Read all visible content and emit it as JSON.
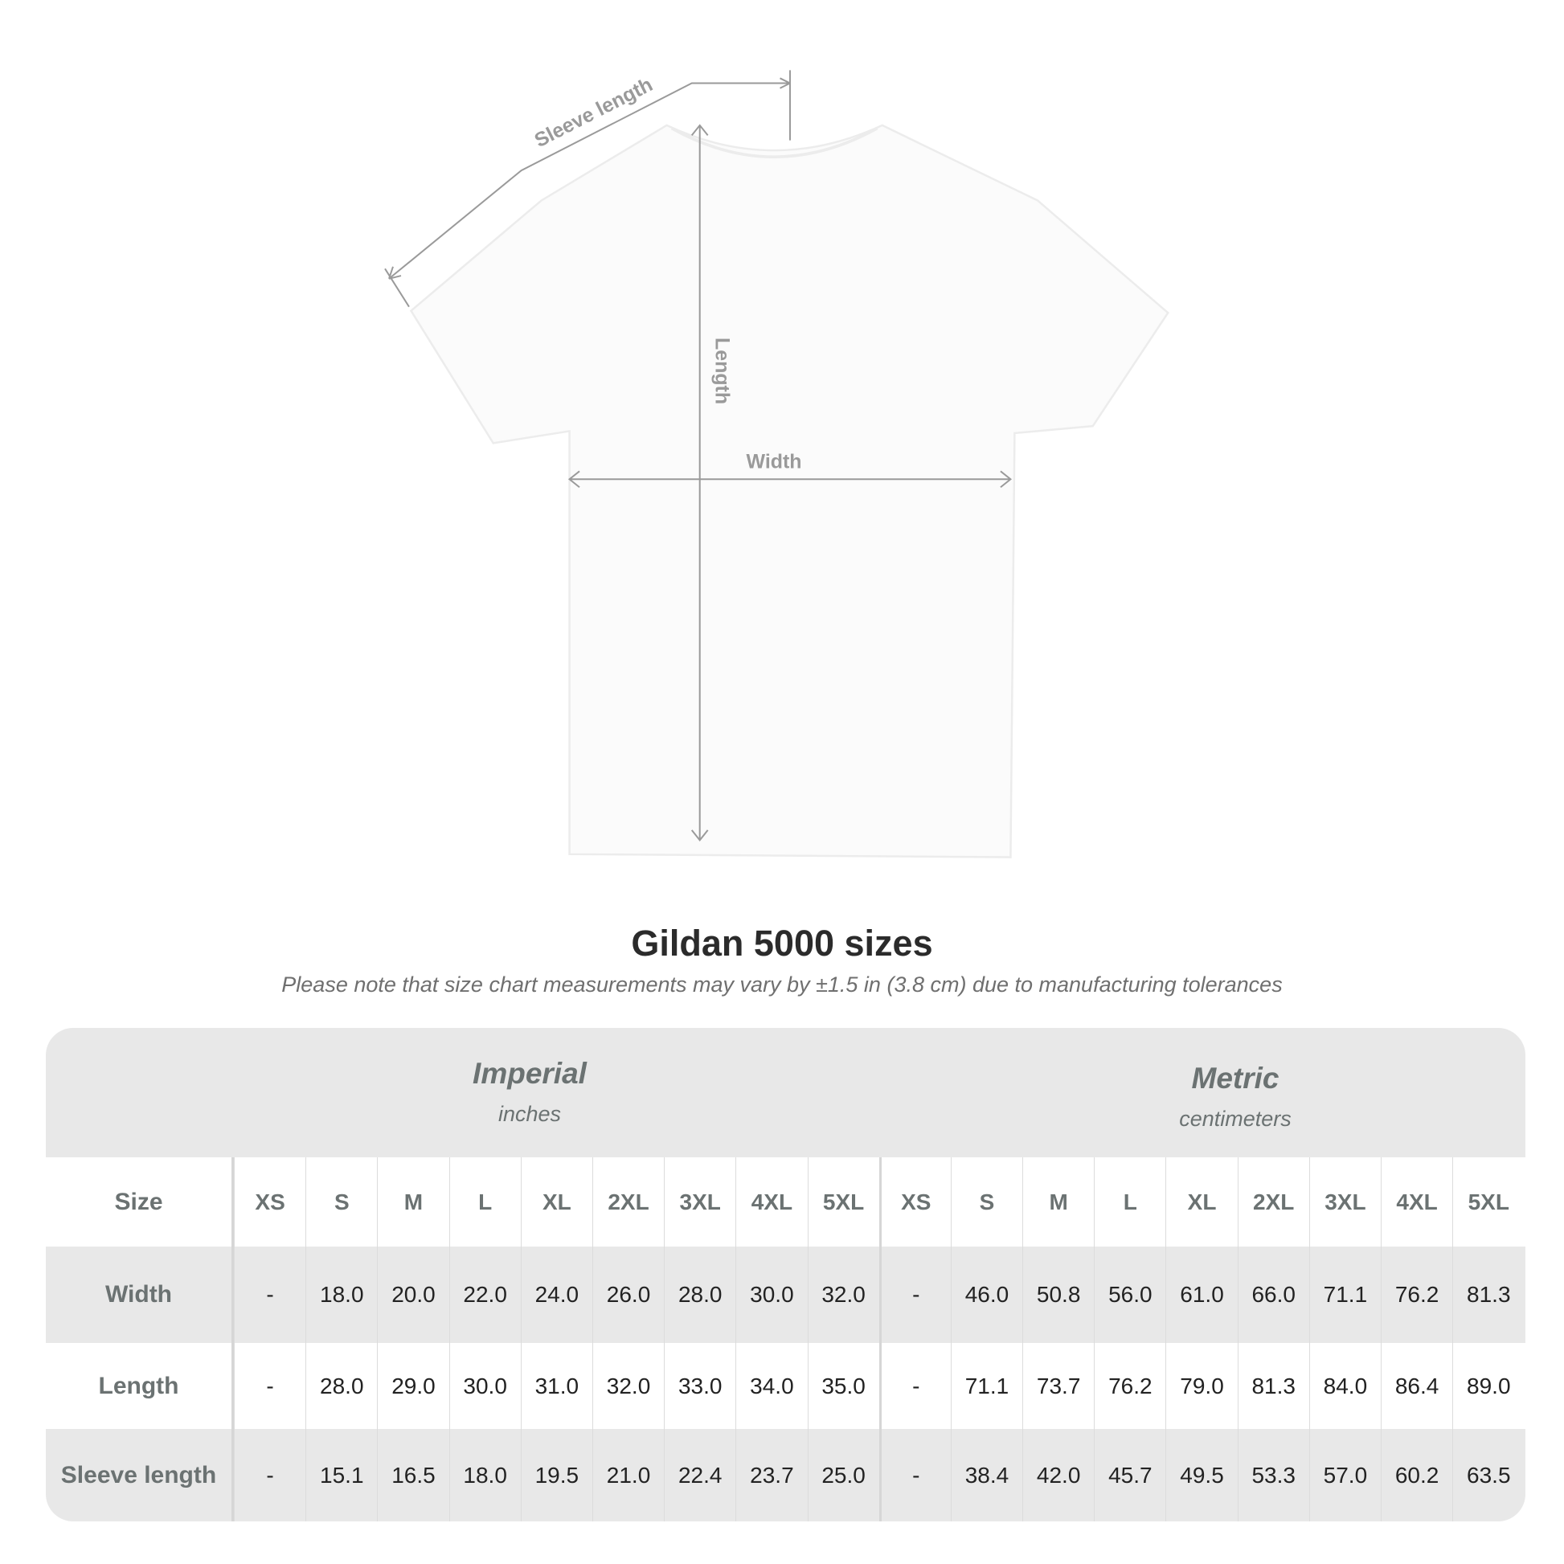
{
  "diagram": {
    "labels": {
      "sleeve": "Sleeve length",
      "length": "Length",
      "width": "Width"
    }
  },
  "title": "Gildan 5000 sizes",
  "note": "Please note that size chart measurements may vary by ±1.5 in (3.8 cm) due to manufacturing tolerances",
  "table": {
    "imperial": {
      "name": "Imperial",
      "unit": "inches"
    },
    "metric": {
      "name": "Metric",
      "unit": "centimeters"
    },
    "size_label": "Size",
    "sizes": [
      "XS",
      "S",
      "M",
      "L",
      "XL",
      "2XL",
      "3XL",
      "4XL",
      "5XL"
    ],
    "rows": [
      {
        "label": "Width",
        "imperial": [
          "-",
          "18.0",
          "20.0",
          "22.0",
          "24.0",
          "26.0",
          "28.0",
          "30.0",
          "32.0"
        ],
        "metric": [
          "-",
          "46.0",
          "50.8",
          "56.0",
          "61.0",
          "66.0",
          "71.1",
          "76.2",
          "81.3"
        ]
      },
      {
        "label": "Length",
        "imperial": [
          "-",
          "28.0",
          "29.0",
          "30.0",
          "31.0",
          "32.0",
          "33.0",
          "34.0",
          "35.0"
        ],
        "metric": [
          "-",
          "71.1",
          "73.7",
          "76.2",
          "79.0",
          "81.3",
          "84.0",
          "86.4",
          "89.0"
        ]
      },
      {
        "label": "Sleeve length",
        "imperial": [
          "-",
          "15.1",
          "16.5",
          "18.0",
          "19.5",
          "21.0",
          "22.4",
          "23.7",
          "25.0"
        ],
        "metric": [
          "-",
          "38.4",
          "42.0",
          "45.7",
          "49.5",
          "53.3",
          "57.0",
          "60.2",
          "63.5"
        ]
      }
    ]
  }
}
